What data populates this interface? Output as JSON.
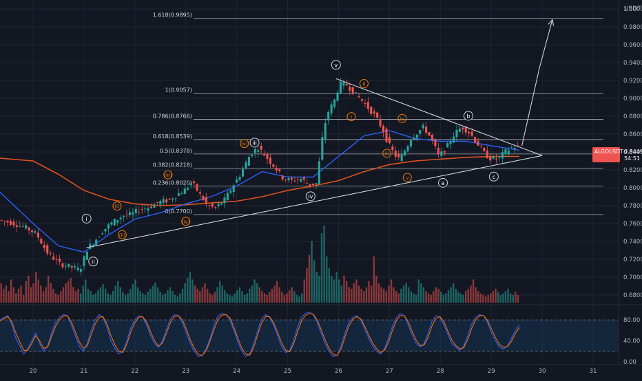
{
  "chart_data": [
    {
      "type": "candlestick",
      "symbol": "ALGOUSDT",
      "last_price": "0.8449",
      "countdown": "54:51",
      "currency_label": "USDT",
      "ylim": [
        0.67,
        1.01
      ],
      "y_ticks": [
        "1.0000",
        "0.9800",
        "0.9600",
        "0.9400",
        "0.9200",
        "0.9000",
        "0.8800",
        "0.8600",
        "0.8400",
        "0.8200",
        "0.8000",
        "0.7800",
        "0.7600",
        "0.7400",
        "0.7200",
        "0.7000",
        "0.6800"
      ],
      "y_tick_values": [
        1.0,
        0.98,
        0.96,
        0.94,
        0.92,
        0.9,
        0.88,
        0.86,
        0.84,
        0.82,
        0.8,
        0.78,
        0.76,
        0.74,
        0.72,
        0.7,
        0.68
      ],
      "x_ticks": [
        "20",
        "21",
        "22",
        "23",
        "24",
        "25",
        "26",
        "27",
        "28",
        "29",
        "30",
        "31"
      ],
      "x_tick_values": [
        20,
        21,
        22,
        23,
        24,
        25,
        26,
        27,
        28,
        29,
        30,
        31
      ],
      "xlim": [
        19.35,
        31.5
      ],
      "price_path": [
        [
          19.35,
          0.764
        ],
        [
          19.6,
          0.761
        ],
        [
          19.9,
          0.755
        ],
        [
          20.1,
          0.748
        ],
        [
          20.3,
          0.728
        ],
        [
          20.55,
          0.715
        ],
        [
          20.75,
          0.712
        ],
        [
          20.95,
          0.708
        ],
        [
          21.1,
          0.733
        ],
        [
          21.2,
          0.738
        ],
        [
          21.4,
          0.752
        ],
        [
          21.6,
          0.762
        ],
        [
          21.8,
          0.769
        ],
        [
          21.95,
          0.77
        ],
        [
          22.1,
          0.775
        ],
        [
          22.3,
          0.778
        ],
        [
          22.5,
          0.784
        ],
        [
          22.7,
          0.786
        ],
        [
          22.85,
          0.792
        ],
        [
          23.0,
          0.797
        ],
        [
          23.15,
          0.806
        ],
        [
          23.3,
          0.793
        ],
        [
          23.45,
          0.78
        ],
        [
          23.6,
          0.777
        ],
        [
          23.8,
          0.787
        ],
        [
          23.95,
          0.802
        ],
        [
          24.1,
          0.815
        ],
        [
          24.3,
          0.838
        ],
        [
          24.45,
          0.845
        ],
        [
          24.6,
          0.835
        ],
        [
          24.75,
          0.825
        ],
        [
          24.95,
          0.81
        ],
        [
          25.1,
          0.808
        ],
        [
          25.3,
          0.81
        ],
        [
          25.45,
          0.803
        ],
        [
          25.6,
          0.805
        ],
        [
          25.7,
          0.852
        ],
        [
          25.8,
          0.882
        ],
        [
          25.95,
          0.898
        ],
        [
          26.05,
          0.916
        ],
        [
          26.2,
          0.915
        ],
        [
          26.35,
          0.905
        ],
        [
          26.5,
          0.897
        ],
        [
          26.6,
          0.89
        ],
        [
          26.75,
          0.88
        ],
        [
          26.9,
          0.865
        ],
        [
          27.0,
          0.85
        ],
        [
          27.1,
          0.84
        ],
        [
          27.2,
          0.832
        ],
        [
          27.3,
          0.838
        ],
        [
          27.45,
          0.855
        ],
        [
          27.6,
          0.863
        ],
        [
          27.7,
          0.868
        ],
        [
          27.85,
          0.855
        ],
        [
          28.0,
          0.835
        ],
        [
          28.15,
          0.845
        ],
        [
          28.3,
          0.86
        ],
        [
          28.45,
          0.868
        ],
        [
          28.6,
          0.862
        ],
        [
          28.75,
          0.85
        ],
        [
          28.9,
          0.838
        ],
        [
          29.0,
          0.833
        ],
        [
          29.15,
          0.832
        ],
        [
          29.3,
          0.84
        ],
        [
          29.45,
          0.846
        ],
        [
          29.55,
          0.845
        ]
      ],
      "ema_fast": [
        [
          19.35,
          0.795
        ],
        [
          20.0,
          0.76
        ],
        [
          20.5,
          0.735
        ],
        [
          21.0,
          0.728
        ],
        [
          21.5,
          0.748
        ],
        [
          22.0,
          0.765
        ],
        [
          22.5,
          0.772
        ],
        [
          23.0,
          0.782
        ],
        [
          23.5,
          0.79
        ],
        [
          24.0,
          0.802
        ],
        [
          24.5,
          0.818
        ],
        [
          25.0,
          0.812
        ],
        [
          25.5,
          0.812
        ],
        [
          26.0,
          0.835
        ],
        [
          26.5,
          0.858
        ],
        [
          27.0,
          0.864
        ],
        [
          27.5,
          0.855
        ],
        [
          28.0,
          0.852
        ],
        [
          28.5,
          0.852
        ],
        [
          29.0,
          0.847
        ],
        [
          29.55,
          0.842
        ]
      ],
      "ema_slow": [
        [
          19.35,
          0.833
        ],
        [
          20.0,
          0.83
        ],
        [
          20.5,
          0.815
        ],
        [
          21.0,
          0.797
        ],
        [
          21.5,
          0.787
        ],
        [
          22.0,
          0.782
        ],
        [
          22.5,
          0.78
        ],
        [
          23.0,
          0.781
        ],
        [
          23.5,
          0.783
        ],
        [
          24.0,
          0.785
        ],
        [
          24.5,
          0.79
        ],
        [
          25.0,
          0.797
        ],
        [
          25.5,
          0.802
        ],
        [
          26.0,
          0.808
        ],
        [
          26.5,
          0.818
        ],
        [
          27.0,
          0.826
        ],
        [
          27.5,
          0.83
        ],
        [
          28.0,
          0.832
        ],
        [
          28.5,
          0.834
        ],
        [
          29.0,
          0.835
        ],
        [
          29.55,
          0.835
        ]
      ],
      "fib_levels": [
        {
          "label": "1.618(0.9895)",
          "value": 0.9895
        },
        {
          "label": "1(0.9057)",
          "value": 0.9057
        },
        {
          "label": "0.786(0.8766)",
          "value": 0.8766
        },
        {
          "label": "0.618(0.8539)",
          "value": 0.8539
        },
        {
          "label": "0.5(0.8378)",
          "value": 0.8378
        },
        {
          "label": "0.382(0.8218)",
          "value": 0.8218
        },
        {
          "label": "0.236(0.8020)",
          "value": 0.802
        },
        {
          "label": "0(0.7700)",
          "value": 0.77
        }
      ],
      "fib_x_range": [
        23.15,
        31.2
      ],
      "triangle_upper": [
        [
          25.95,
          0.922
        ],
        [
          30.0,
          0.836
        ]
      ],
      "triangle_lower": [
        [
          21.05,
          0.733
        ],
        [
          30.0,
          0.836
        ]
      ],
      "projection": [
        [
          29.6,
          0.847
        ],
        [
          29.95,
          0.935
        ],
        [
          30.2,
          0.988
        ]
      ],
      "wave_labels_white": [
        {
          "text": "i",
          "x": 21.05,
          "y": 0.7655
        },
        {
          "text": "ii",
          "x": 21.18,
          "y": 0.7175
        },
        {
          "text": "iii",
          "x": 24.35,
          "y": 0.8505
        },
        {
          "text": "iv",
          "x": 25.45,
          "y": 0.7905
        },
        {
          "text": "v",
          "x": 25.95,
          "y": 0.9375
        },
        {
          "text": "a",
          "x": 28.05,
          "y": 0.8055
        },
        {
          "text": "b",
          "x": 28.55,
          "y": 0.8805
        },
        {
          "text": "c",
          "x": 29.05,
          "y": 0.8125
        }
      ],
      "wave_labels_orange": [
        {
          "text": "(i)",
          "x": 21.65,
          "y": 0.7795
        },
        {
          "text": "(ii)",
          "x": 21.75,
          "y": 0.7475
        },
        {
          "text": "(iii)",
          "x": 22.65,
          "y": 0.8145
        },
        {
          "text": "(iv)",
          "x": 23.0,
          "y": 0.7625
        },
        {
          "text": "(v)",
          "x": 24.15,
          "y": 0.8495
        },
        {
          "text": "i",
          "x": 26.25,
          "y": 0.8795
        },
        {
          "text": "ii",
          "x": 26.5,
          "y": 0.9165
        },
        {
          "text": "iii",
          "x": 26.95,
          "y": 0.8385
        },
        {
          "text": "iv",
          "x": 27.25,
          "y": 0.8775
        },
        {
          "text": "v",
          "x": 27.35,
          "y": 0.8115
        }
      ]
    },
    {
      "type": "bar",
      "name": "volume",
      "note": "volume histogram, relative heights 0-1",
      "values": [
        0.25,
        0.18,
        0.22,
        0.15,
        0.3,
        0.2,
        0.12,
        0.18,
        0.22,
        0.1,
        0.28,
        0.35,
        0.2,
        0.25,
        0.4,
        0.3,
        0.22,
        0.15,
        0.2,
        0.35,
        0.25,
        0.18,
        0.12,
        0.1,
        0.15,
        0.2,
        0.25,
        0.28,
        0.32,
        0.2,
        0.15,
        0.18,
        0.12,
        0.22,
        0.3,
        0.18,
        0.15,
        0.1,
        0.12,
        0.16,
        0.2,
        0.24,
        0.18,
        0.12,
        0.1,
        0.15,
        0.22,
        0.28,
        0.2,
        0.14,
        0.1,
        0.12,
        0.18,
        0.24,
        0.3,
        0.2,
        0.15,
        0.12,
        0.1,
        0.14,
        0.18,
        0.22,
        0.26,
        0.2,
        0.14,
        0.1,
        0.12,
        0.16,
        0.2,
        0.15,
        0.1,
        0.08,
        0.12,
        0.18,
        0.25,
        0.32,
        0.4,
        0.3,
        0.22,
        0.18,
        0.15,
        0.2,
        0.25,
        0.18,
        0.12,
        0.1,
        0.14,
        0.2,
        0.28,
        0.22,
        0.16,
        0.12,
        0.1,
        0.08,
        0.12,
        0.16,
        0.2,
        0.15,
        0.1,
        0.12,
        0.18,
        0.22,
        0.3,
        0.25,
        0.2,
        0.15,
        0.12,
        0.1,
        0.14,
        0.18,
        0.22,
        0.28,
        0.2,
        0.14,
        0.1,
        0.12,
        0.16,
        0.2,
        0.15,
        0.1,
        0.08,
        0.12,
        0.3,
        0.45,
        0.62,
        0.8,
        0.55,
        0.4,
        0.35,
        0.9,
        1.0,
        0.6,
        0.45,
        0.35,
        0.3,
        0.4,
        0.3,
        0.22,
        0.35,
        0.28,
        0.2,
        0.18,
        0.25,
        0.3,
        0.22,
        0.18,
        0.15,
        0.2,
        0.28,
        0.22,
        0.6,
        0.35,
        0.25,
        0.2,
        0.18,
        0.15,
        0.22,
        0.3,
        0.2,
        0.15,
        0.12,
        0.18,
        0.22,
        0.25,
        0.2,
        0.15,
        0.12,
        0.1,
        0.3,
        0.25,
        0.2,
        0.15,
        0.12,
        0.1,
        0.15,
        0.2,
        0.18,
        0.14,
        0.1,
        0.12,
        0.16,
        0.2,
        0.25,
        0.18,
        0.14,
        0.12,
        0.1,
        0.15,
        0.18,
        0.22,
        0.3,
        0.2,
        0.15,
        0.12,
        0.1,
        0.08,
        0.1,
        0.12,
        0.15,
        0.18,
        0.14,
        0.1,
        0.12,
        0.15,
        0.18,
        0.12,
        0.1,
        0.14,
        0.1
      ]
    },
    {
      "type": "line",
      "name": "stochastic-rsi",
      "ylim": [
        -5,
        105
      ],
      "y_ticks": [
        "80.00",
        "40.00",
        "0.00"
      ],
      "y_tick_values": [
        80,
        40,
        0
      ],
      "band": [
        20,
        80
      ],
      "series": [
        {
          "values": [
            80,
            85,
            88,
            70,
            45,
            30,
            15,
            25,
            40,
            55,
            35,
            20,
            30,
            55,
            75,
            85,
            90,
            88,
            70,
            50,
            30,
            20,
            35,
            60,
            80,
            90,
            85,
            65,
            40,
            25,
            15,
            20,
            40,
            65,
            80,
            88,
            85,
            70,
            50,
            35,
            28,
            40,
            62,
            82,
            90,
            88,
            75,
            55,
            35,
            20,
            10,
            12,
            25,
            45,
            70,
            88,
            92,
            90,
            80,
            60,
            38,
            20,
            10,
            15,
            35,
            60,
            82,
            90,
            85,
            70,
            50,
            30,
            18,
            20,
            40,
            65,
            85,
            92,
            95,
            90,
            75,
            55,
            35,
            20,
            10,
            12,
            30,
            55,
            75,
            85,
            88,
            80,
            62,
            45,
            30,
            20,
            15,
            25,
            45,
            68,
            85,
            92,
            88,
            70,
            50,
            35,
            28,
            35,
            55,
            78,
            88,
            85,
            70,
            52,
            35,
            28,
            22,
            30,
            50,
            72,
            85,
            90,
            88,
            75,
            55,
            40,
            28,
            25,
            30,
            45,
            60,
            70
          ]
        },
        {
          "values": [
            78,
            82,
            86,
            76,
            55,
            38,
            22,
            22,
            35,
            50,
            40,
            26,
            28,
            48,
            68,
            80,
            87,
            88,
            76,
            57,
            38,
            26,
            30,
            52,
            72,
            85,
            86,
            72,
            50,
            32,
            20,
            18,
            34,
            57,
            74,
            85,
            86,
            75,
            57,
            40,
            30,
            36,
            55,
            75,
            86,
            88,
            80,
            62,
            42,
            26,
            15,
            12,
            21,
            40,
            62,
            81,
            89,
            90,
            84,
            66,
            45,
            26,
            15,
            13,
            28,
            52,
            74,
            86,
            86,
            75,
            57,
            37,
            23,
            19,
            33,
            56,
            77,
            88,
            92,
            91,
            80,
            62,
            42,
            26,
            15,
            12,
            24,
            47,
            68,
            81,
            86,
            82,
            68,
            51,
            36,
            25,
            18,
            22,
            38,
            60,
            79,
            88,
            88,
            76,
            57,
            41,
            31,
            32,
            47,
            69,
            83,
            86,
            76,
            58,
            41,
            31,
            25,
            27,
            43,
            64,
            80,
            88,
            88,
            79,
            62,
            46,
            33,
            28,
            29,
            39,
            54,
            65
          ]
        }
      ]
    }
  ]
}
